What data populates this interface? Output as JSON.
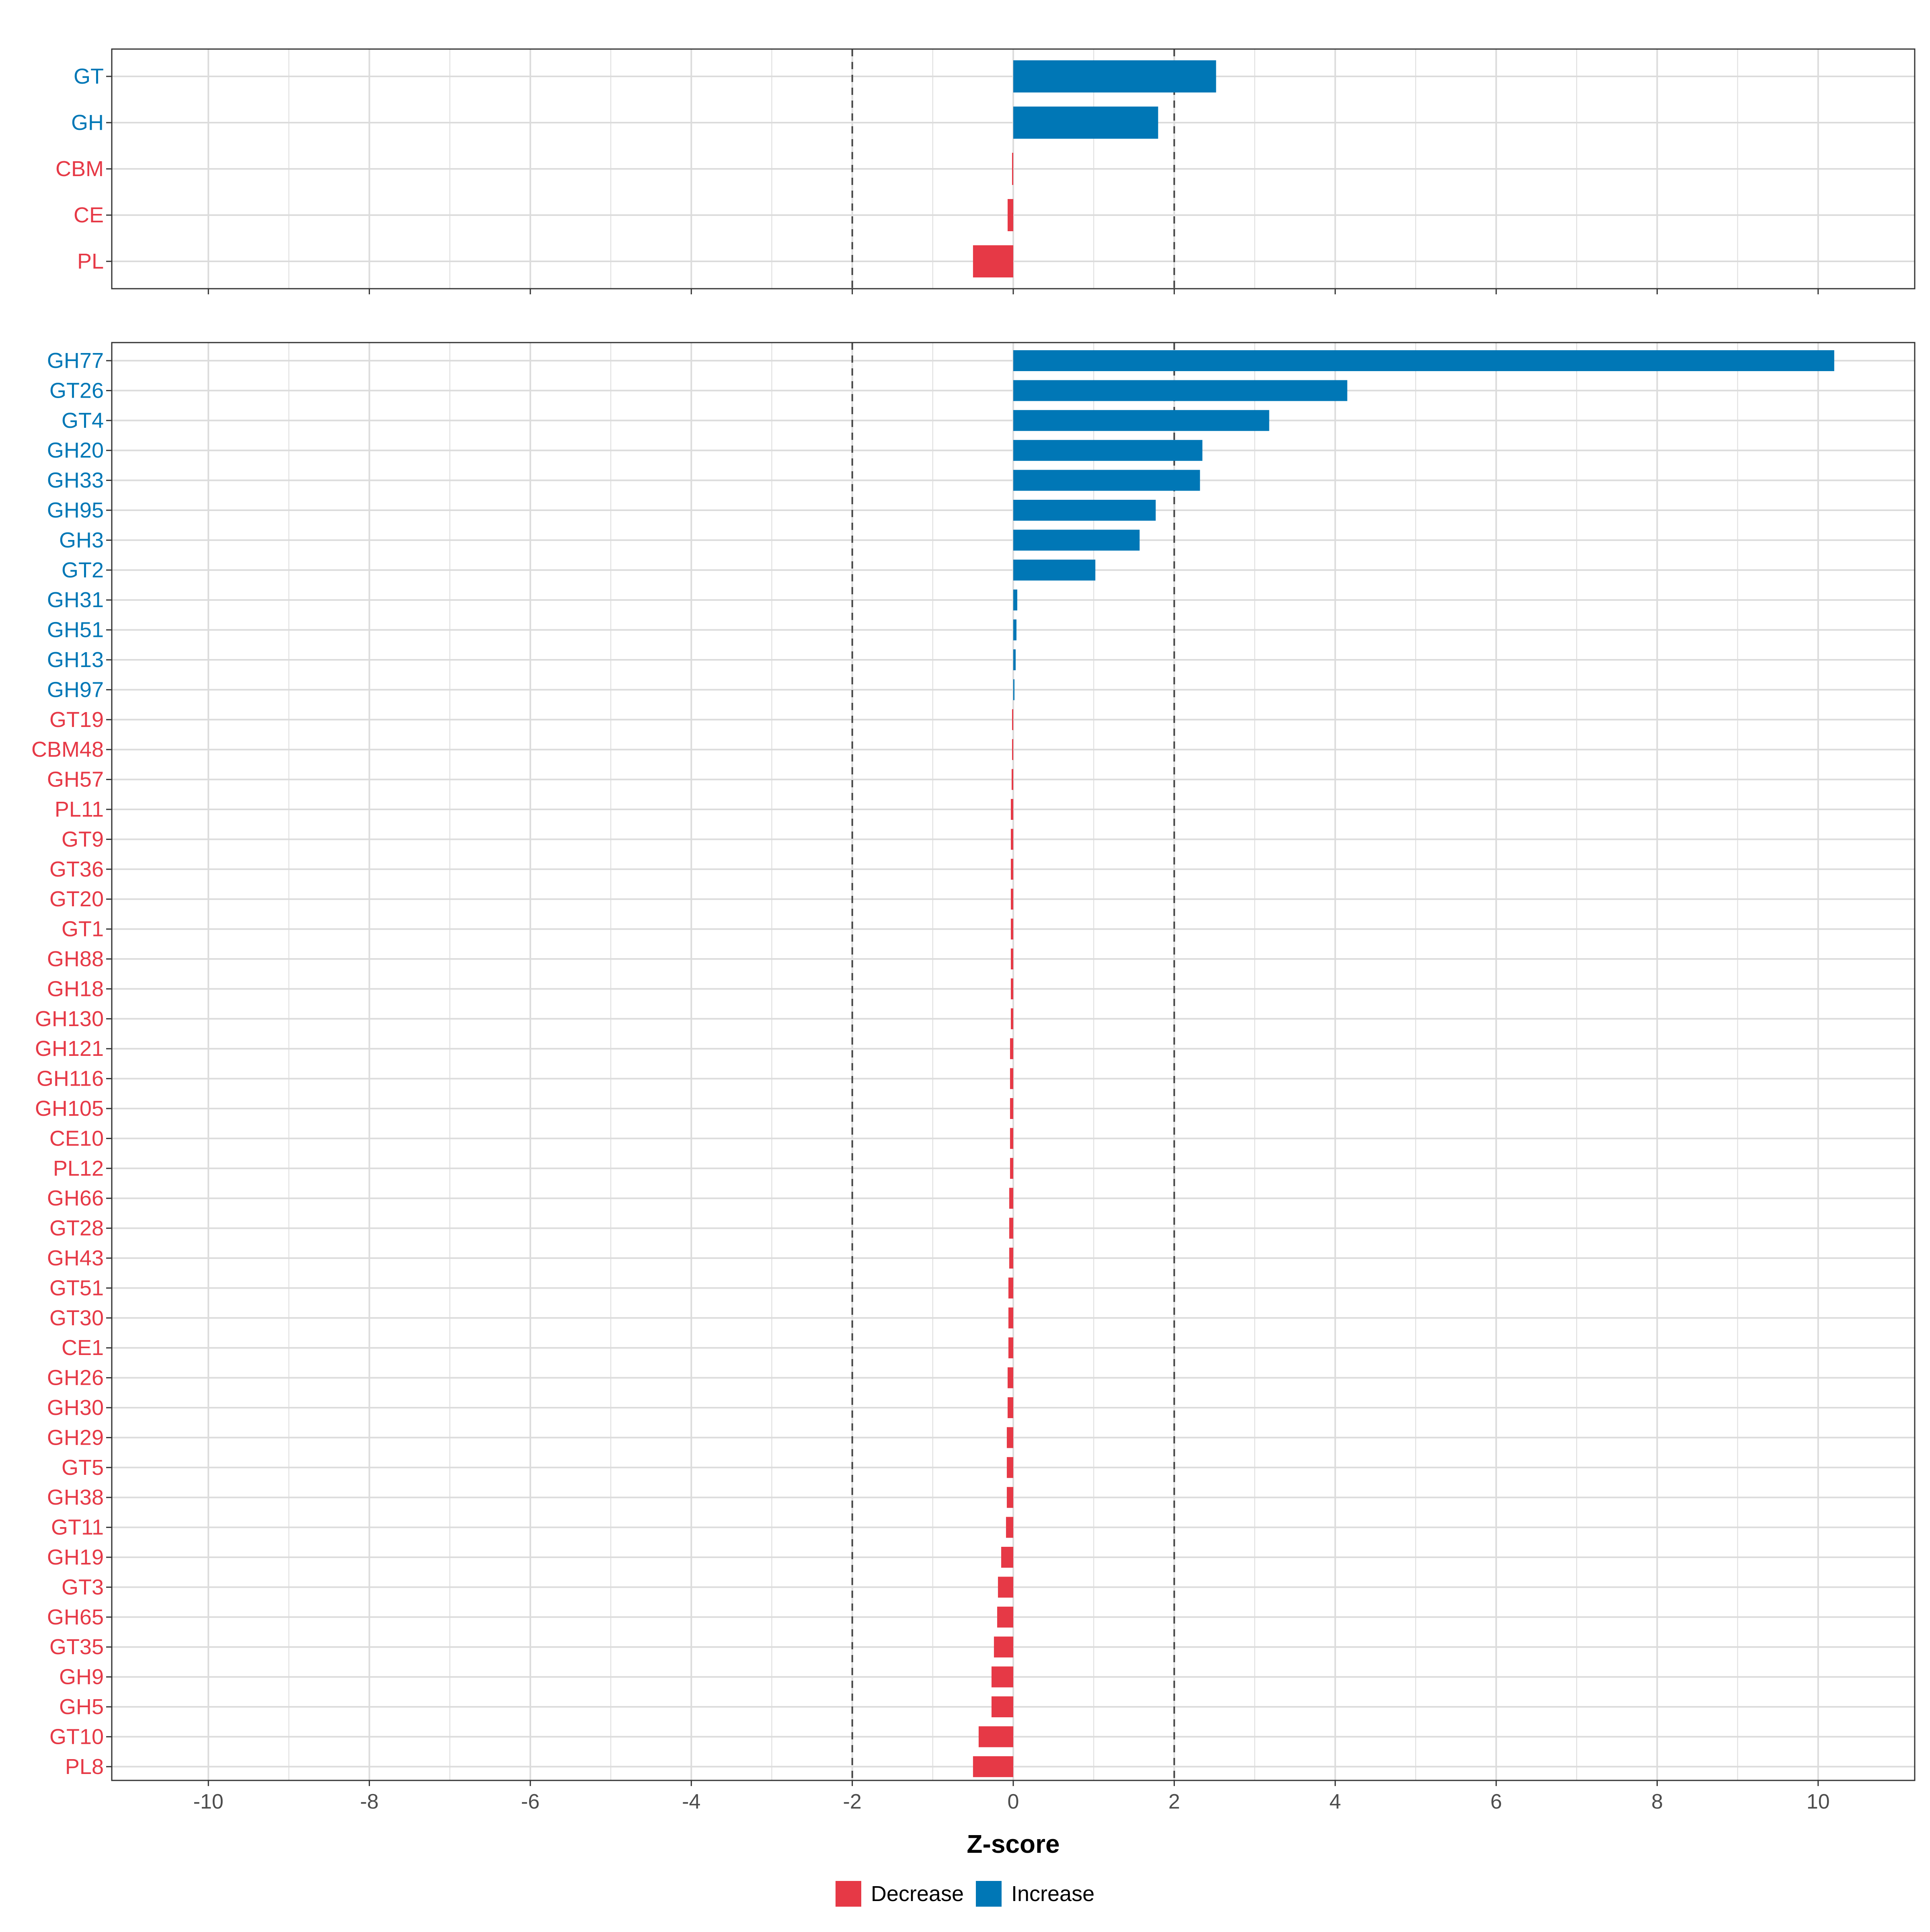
{
  "chart_data": {
    "type": "bar",
    "orientation": "horizontal",
    "xlabel": "Z-score",
    "xlim": [
      -11.2,
      11.2
    ],
    "xticks": [
      -10,
      -8,
      -6,
      -4,
      -2,
      0,
      2,
      4,
      6,
      8,
      10
    ],
    "xtick_labels": [
      "-10",
      "-8",
      "-6",
      "-4",
      "-2",
      "0",
      "2",
      "4",
      "6",
      "8",
      "10"
    ],
    "reference_lines": [
      -2,
      2
    ],
    "colors": {
      "Decrease": "#E63946",
      "Increase": "#0077B6"
    },
    "legend": {
      "position": "bottom",
      "items": [
        {
          "label": "Decrease",
          "color": "#E63946"
        },
        {
          "label": "Increase",
          "color": "#0077B6"
        }
      ]
    },
    "panels": [
      {
        "name": "class",
        "categories": [
          "GT",
          "GH",
          "CBM",
          "CE",
          "PL"
        ],
        "values": [
          2.52,
          1.8,
          -0.01,
          -0.07,
          -0.5
        ]
      },
      {
        "name": "family",
        "categories": [
          "GH77",
          "GT26",
          "GT4",
          "GH20",
          "GH33",
          "GH95",
          "GH3",
          "GT2",
          "GH31",
          "GH51",
          "GH13",
          "GH97",
          "GT19",
          "CBM48",
          "GH57",
          "PL11",
          "GT9",
          "GT36",
          "GT20",
          "GT1",
          "GH88",
          "GH18",
          "GH130",
          "GH121",
          "GH116",
          "GH105",
          "CE10",
          "PL12",
          "GH66",
          "GT28",
          "GH43",
          "GT51",
          "GT30",
          "CE1",
          "GH26",
          "GH30",
          "GH29",
          "GT5",
          "GH38",
          "GT11",
          "GH19",
          "GT3",
          "GH65",
          "GT35",
          "GH9",
          "GH5",
          "GT10",
          "PL8"
        ],
        "values": [
          10.2,
          4.15,
          3.18,
          2.35,
          2.32,
          1.77,
          1.57,
          1.02,
          0.05,
          0.04,
          0.03,
          0.01,
          -0.005,
          -0.01,
          -0.02,
          -0.03,
          -0.03,
          -0.03,
          -0.03,
          -0.03,
          -0.03,
          -0.03,
          -0.03,
          -0.04,
          -0.04,
          -0.04,
          -0.04,
          -0.04,
          -0.05,
          -0.05,
          -0.05,
          -0.06,
          -0.06,
          -0.06,
          -0.07,
          -0.07,
          -0.08,
          -0.08,
          -0.08,
          -0.09,
          -0.15,
          -0.19,
          -0.2,
          -0.24,
          -0.27,
          -0.27,
          -0.43,
          -0.5
        ]
      }
    ]
  }
}
